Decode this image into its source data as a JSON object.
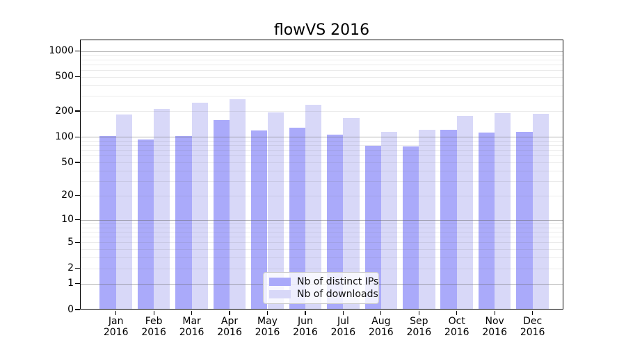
{
  "title": "flowVS 2016",
  "legend": {
    "items": [
      {
        "label": "Nb of distinct IPs",
        "swatch": "#aaaafa"
      },
      {
        "label": "Nb of downloads",
        "swatch": "#d8d8f8"
      }
    ]
  },
  "y_axis": {
    "tick_values": [
      0,
      1,
      2,
      5,
      10,
      20,
      50,
      100,
      200,
      500,
      1000
    ],
    "scale": "log(1+y)"
  },
  "x_axis": {
    "months": [
      "Jan",
      "Feb",
      "Mar",
      "Apr",
      "May",
      "Jun",
      "Jul",
      "Aug",
      "Sep",
      "Oct",
      "Nov",
      "Dec"
    ],
    "year": "2016"
  },
  "colors": {
    "bar_ips": "#aaaafa",
    "bar_downloads": "#d8d8f8",
    "grid_major": "rgba(100,100,100,0.50)",
    "grid_minor": "rgba(100,100,100,0.13)",
    "axis": "#000000"
  },
  "chart_data": {
    "type": "bar",
    "title": "flowVS 2016",
    "categories": [
      "Jan 2016",
      "Feb 2016",
      "Mar 2016",
      "Apr 2016",
      "May 2016",
      "Jun 2016",
      "Jul 2016",
      "Aug 2016",
      "Sep 2016",
      "Oct 2016",
      "Nov 2016",
      "Dec 2016"
    ],
    "series": [
      {
        "name": "Nb of distinct IPs",
        "color": "#aaaafa",
        "values": [
          103,
          93,
          103,
          156,
          118,
          127,
          107,
          78,
          77,
          121,
          112,
          114
        ]
      },
      {
        "name": "Nb of downloads",
        "color": "#d8d8f8",
        "values": [
          183,
          212,
          250,
          273,
          193,
          237,
          166,
          114,
          121,
          176,
          189,
          187
        ]
      }
    ],
    "xlabel": "",
    "ylabel": "",
    "y_scale": "log1p",
    "y_ticks": [
      0,
      1,
      2,
      5,
      10,
      20,
      50,
      100,
      200,
      500,
      1000
    ],
    "ylim": [
      0,
      1360
    ],
    "grid": true,
    "grid_major_at": [
      1,
      10,
      100,
      1000
    ],
    "legend_position": "lower center"
  }
}
